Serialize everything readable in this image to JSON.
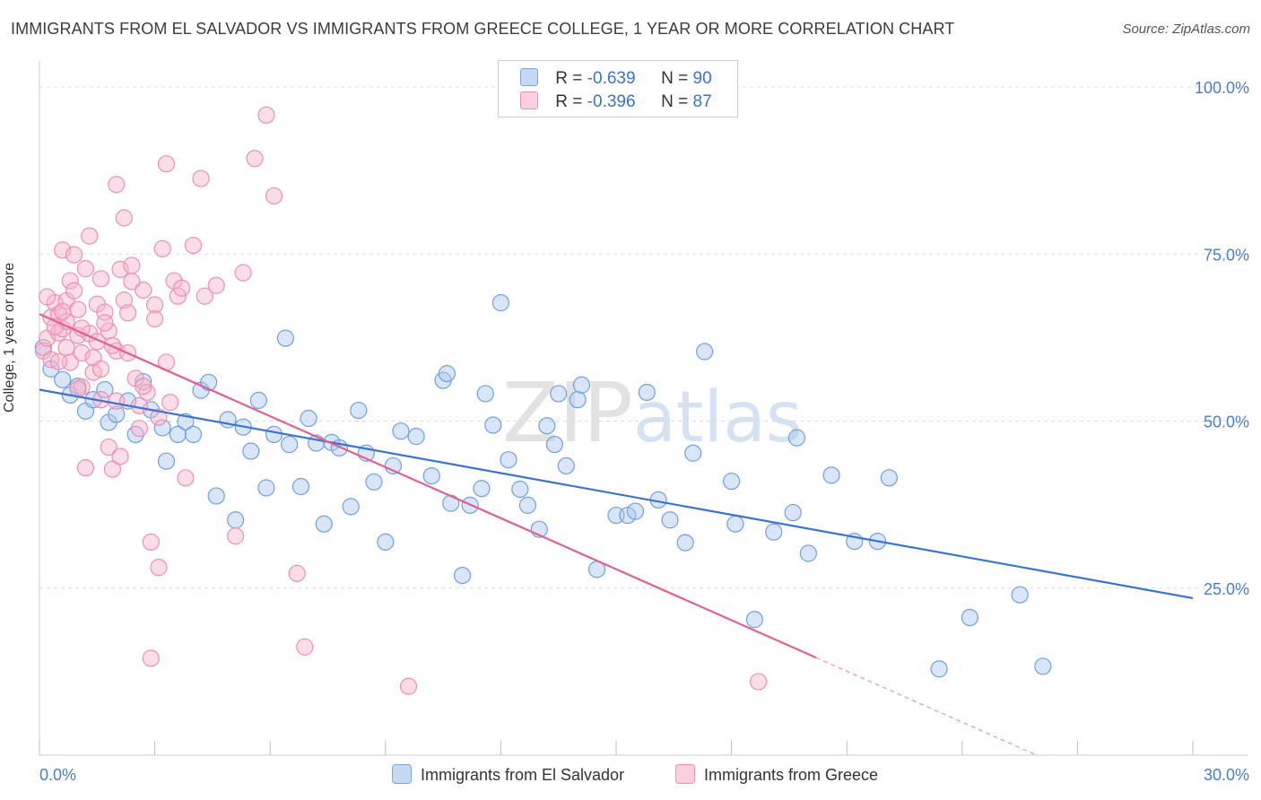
{
  "header": {
    "title": "IMMIGRANTS FROM EL SALVADOR VS IMMIGRANTS FROM GREECE COLLEGE, 1 YEAR OR MORE CORRELATION CHART",
    "source": "Source: ZipAtlas.com"
  },
  "watermark": {
    "zip": "ZIP",
    "atlas": "atlas"
  },
  "legend": {
    "rows": [
      {
        "r_label": "R =",
        "r_value": "-0.639",
        "n_label": "N =",
        "n_value": "90",
        "color": "#a9c6ef"
      },
      {
        "r_label": "R =",
        "r_value": "-0.396",
        "n_label": "N =",
        "n_value": "87",
        "color": "#f7b3c9"
      }
    ]
  },
  "bottom_legend": [
    {
      "label": "Immigrants from El Salvador",
      "color": "#a9c6ef"
    },
    {
      "label": "Immigrants from Greece",
      "color": "#f7b3c9"
    }
  ],
  "chart_data": {
    "type": "scatter",
    "title": "IMMIGRANTS FROM EL SALVADOR VS IMMIGRANTS FROM GREECE COLLEGE, 1 YEAR OR MORE CORRELATION CHART",
    "xlabel": "",
    "ylabel": "College, 1 year or more",
    "xlim": [
      0,
      30
    ],
    "ylim": [
      0,
      105
    ],
    "x_tick_labels": [
      "0.0%",
      "30.0%"
    ],
    "y_tick_labels": [
      "100.0%",
      "75.0%",
      "50.0%",
      "25.0%"
    ],
    "y_ticks": [
      100,
      75,
      50,
      25
    ],
    "grid": true,
    "legend_placement": "top-center",
    "series": [
      {
        "name": "Immigrants from El Salvador",
        "color": "#6fa0e0",
        "trend": {
          "x": [
            0,
            30
          ],
          "y": [
            54.7,
            23.5
          ]
        },
        "points": [
          [
            0.3,
            57.8
          ],
          [
            0.6,
            56.2
          ],
          [
            0.8,
            53.9
          ],
          [
            1.0,
            55.2
          ],
          [
            1.2,
            51.5
          ],
          [
            1.4,
            53.2
          ],
          [
            1.8,
            49.8
          ],
          [
            2.0,
            51.0
          ],
          [
            2.3,
            53.0
          ],
          [
            2.5,
            48.0
          ],
          [
            2.7,
            55.9
          ],
          [
            2.9,
            51.7
          ],
          [
            3.2,
            49.0
          ],
          [
            3.3,
            44.0
          ],
          [
            3.6,
            48.0
          ],
          [
            3.8,
            49.9
          ],
          [
            4.0,
            48.0
          ],
          [
            4.2,
            54.6
          ],
          [
            4.4,
            55.8
          ],
          [
            4.6,
            38.8
          ],
          [
            4.9,
            50.2
          ],
          [
            5.1,
            35.2
          ],
          [
            5.3,
            49.1
          ],
          [
            5.5,
            45.5
          ],
          [
            5.7,
            53.1
          ],
          [
            5.9,
            40.0
          ],
          [
            6.1,
            48.0
          ],
          [
            6.4,
            62.4
          ],
          [
            6.5,
            46.5
          ],
          [
            6.8,
            40.2
          ],
          [
            7.0,
            50.4
          ],
          [
            7.2,
            46.7
          ],
          [
            7.4,
            34.6
          ],
          [
            7.6,
            46.8
          ],
          [
            7.8,
            46.0
          ],
          [
            8.1,
            37.2
          ],
          [
            8.3,
            51.6
          ],
          [
            8.5,
            45.2
          ],
          [
            8.7,
            40.9
          ],
          [
            9.0,
            31.9
          ],
          [
            9.2,
            43.3
          ],
          [
            9.4,
            48.5
          ],
          [
            9.8,
            47.7
          ],
          [
            10.2,
            41.8
          ],
          [
            10.5,
            56.1
          ],
          [
            10.6,
            57.1
          ],
          [
            10.7,
            37.7
          ],
          [
            11.0,
            26.9
          ],
          [
            11.2,
            37.4
          ],
          [
            11.5,
            39.9
          ],
          [
            11.6,
            54.1
          ],
          [
            11.8,
            49.4
          ],
          [
            12.0,
            67.7
          ],
          [
            12.2,
            44.2
          ],
          [
            12.5,
            39.8
          ],
          [
            12.7,
            37.4
          ],
          [
            13.0,
            33.8
          ],
          [
            13.2,
            49.3
          ],
          [
            13.4,
            46.5
          ],
          [
            13.5,
            54.1
          ],
          [
            13.7,
            43.3
          ],
          [
            14.0,
            53.2
          ],
          [
            14.1,
            55.4
          ],
          [
            14.5,
            27.8
          ],
          [
            15.0,
            35.9
          ],
          [
            15.3,
            35.9
          ],
          [
            15.5,
            36.5
          ],
          [
            15.8,
            54.3
          ],
          [
            16.1,
            38.2
          ],
          [
            16.4,
            35.2
          ],
          [
            16.8,
            31.8
          ],
          [
            17.0,
            45.2
          ],
          [
            17.3,
            60.4
          ],
          [
            18.0,
            41.0
          ],
          [
            18.1,
            34.6
          ],
          [
            18.6,
            20.3
          ],
          [
            19.1,
            33.4
          ],
          [
            19.6,
            36.3
          ],
          [
            19.7,
            47.5
          ],
          [
            20.0,
            30.2
          ],
          [
            20.6,
            41.9
          ],
          [
            21.2,
            32.0
          ],
          [
            21.8,
            32.0
          ],
          [
            22.1,
            41.5
          ],
          [
            23.4,
            12.9
          ],
          [
            24.2,
            20.6
          ],
          [
            25.5,
            24.0
          ],
          [
            26.1,
            13.3
          ],
          [
            0.1,
            61.0
          ],
          [
            1.7,
            54.7
          ]
        ]
      },
      {
        "name": "Immigrants from Greece",
        "color": "#ee7fa3",
        "trend": {
          "x": [
            0,
            20.2
          ],
          "y": [
            66.0,
            14.6
          ]
        },
        "points": [
          [
            0.1,
            60.5
          ],
          [
            0.2,
            62.4
          ],
          [
            0.3,
            65.5
          ],
          [
            0.3,
            59.2
          ],
          [
            0.4,
            67.7
          ],
          [
            0.5,
            63.2
          ],
          [
            0.5,
            66.0
          ],
          [
            0.6,
            75.6
          ],
          [
            0.6,
            63.8
          ],
          [
            0.7,
            68.0
          ],
          [
            0.7,
            64.9
          ],
          [
            0.8,
            58.8
          ],
          [
            0.8,
            71.0
          ],
          [
            0.9,
            74.9
          ],
          [
            1.0,
            62.8
          ],
          [
            1.0,
            66.7
          ],
          [
            1.1,
            60.2
          ],
          [
            1.1,
            55.1
          ],
          [
            1.2,
            72.8
          ],
          [
            1.2,
            43.0
          ],
          [
            1.3,
            63.1
          ],
          [
            1.3,
            77.7
          ],
          [
            1.4,
            57.3
          ],
          [
            1.5,
            67.5
          ],
          [
            1.5,
            61.9
          ],
          [
            1.6,
            71.3
          ],
          [
            1.6,
            53.2
          ],
          [
            1.7,
            66.3
          ],
          [
            1.8,
            63.5
          ],
          [
            1.8,
            46.1
          ],
          [
            1.9,
            42.8
          ],
          [
            2.0,
            85.4
          ],
          [
            2.0,
            60.5
          ],
          [
            2.1,
            44.7
          ],
          [
            2.1,
            72.7
          ],
          [
            2.2,
            68.1
          ],
          [
            2.2,
            80.4
          ],
          [
            2.3,
            66.2
          ],
          [
            2.4,
            70.9
          ],
          [
            2.5,
            56.4
          ],
          [
            2.6,
            52.3
          ],
          [
            2.7,
            69.6
          ],
          [
            2.8,
            54.3
          ],
          [
            2.9,
            31.9
          ],
          [
            2.9,
            14.5
          ],
          [
            3.0,
            67.4
          ],
          [
            3.0,
            65.3
          ],
          [
            3.1,
            28.1
          ],
          [
            3.2,
            75.8
          ],
          [
            3.3,
            88.5
          ],
          [
            3.3,
            58.8
          ],
          [
            3.5,
            71.0
          ],
          [
            3.6,
            68.7
          ],
          [
            3.7,
            69.9
          ],
          [
            3.8,
            41.5
          ],
          [
            4.0,
            76.3
          ],
          [
            4.2,
            86.3
          ],
          [
            4.3,
            68.7
          ],
          [
            4.6,
            70.3
          ],
          [
            5.1,
            32.8
          ],
          [
            5.3,
            72.2
          ],
          [
            5.6,
            89.3
          ],
          [
            5.9,
            95.8
          ],
          [
            6.1,
            83.7
          ],
          [
            6.7,
            27.2
          ],
          [
            6.9,
            16.2
          ],
          [
            9.6,
            10.3
          ],
          [
            18.7,
            11.0
          ],
          [
            0.2,
            68.6
          ],
          [
            0.4,
            64.1
          ],
          [
            0.5,
            58.9
          ],
          [
            0.6,
            66.4
          ],
          [
            0.7,
            61.0
          ],
          [
            0.9,
            69.5
          ],
          [
            1.0,
            54.8
          ],
          [
            1.1,
            63.9
          ],
          [
            1.4,
            59.5
          ],
          [
            1.6,
            57.8
          ],
          [
            1.7,
            64.7
          ],
          [
            1.9,
            61.3
          ],
          [
            2.0,
            53.0
          ],
          [
            2.3,
            60.2
          ],
          [
            2.4,
            73.3
          ],
          [
            2.6,
            48.9
          ],
          [
            2.7,
            55.2
          ],
          [
            3.1,
            50.6
          ],
          [
            3.4,
            52.8
          ]
        ]
      }
    ]
  }
}
